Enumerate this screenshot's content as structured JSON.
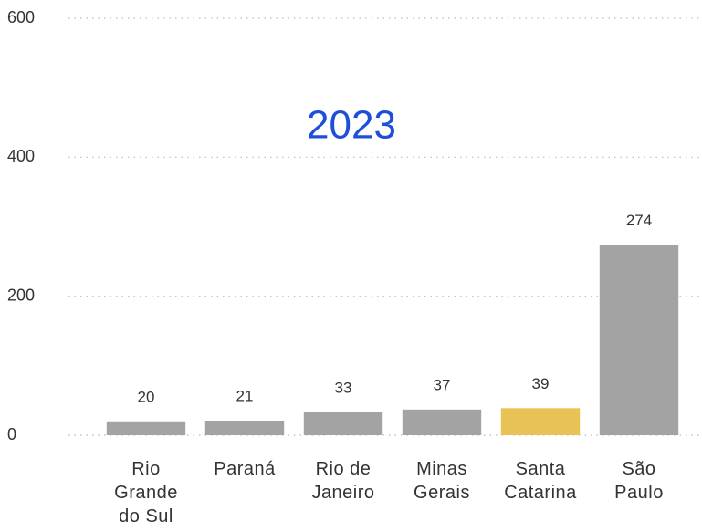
{
  "chart_data": {
    "type": "bar",
    "title": "2023",
    "categories": [
      "Rio Grande do Sul",
      "Paraná",
      "Rio de Janeiro",
      "Minas Gerais",
      "Santa Catarina",
      "São Paulo"
    ],
    "values": [
      20,
      21,
      33,
      37,
      39,
      274
    ],
    "colors": [
      "#a3a3a3",
      "#a3a3a3",
      "#a3a3a3",
      "#a3a3a3",
      "#e8c254",
      "#a3a3a3"
    ],
    "ylim": [
      0,
      600
    ],
    "yticks": [
      0,
      200,
      400,
      600
    ],
    "grid": true
  }
}
